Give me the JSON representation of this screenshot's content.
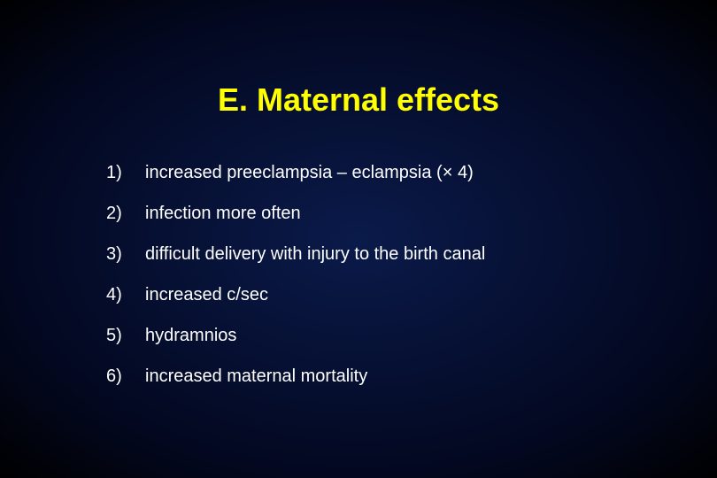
{
  "slide": {
    "title": "E. Maternal effects",
    "title_color": "#ffff00",
    "title_fontsize": 36,
    "background": {
      "type": "radial-gradient",
      "center_color": "#0a1a4a",
      "edge_color": "#000000"
    },
    "text_color": "#ffffff",
    "item_fontsize": 20,
    "items": [
      {
        "num": "1)",
        "text": "increased  preeclampsia – eclampsia (× 4)"
      },
      {
        "num": "2)",
        "text": "infection more often"
      },
      {
        "num": "3)",
        "text": "difficult delivery with injury to the birth canal"
      },
      {
        "num": "4)",
        "text": "increased c/sec"
      },
      {
        "num": "5)",
        "text": "hydramnios"
      },
      {
        "num": "6)",
        "text": "increased maternal mortality"
      }
    ]
  }
}
